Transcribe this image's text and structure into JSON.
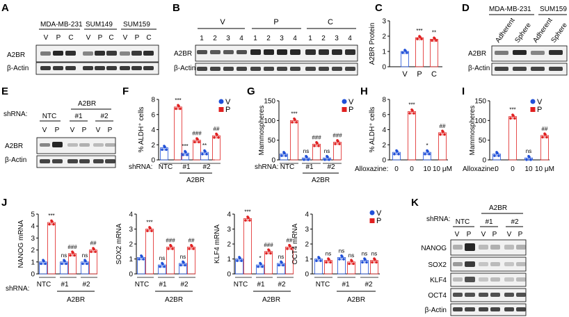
{
  "panel_letters": [
    "A",
    "B",
    "C",
    "D",
    "E",
    "F",
    "G",
    "H",
    "I",
    "J",
    "K"
  ],
  "colors": {
    "vehicle": "#1f4fd8",
    "treated": "#e02020",
    "axis": "#000000",
    "blot_bg": "#3b3b3b"
  },
  "blot_band_labels": {
    "a2br": "A2BR",
    "actin": "β-Actin",
    "nanog": "NANOG",
    "sox2": "SOX2",
    "klf4": "KLF4",
    "oct4": "OCT4"
  },
  "panel_a": {
    "groups": [
      "MDA-MB-231",
      "SUM149",
      "SUM159"
    ],
    "lanes": [
      "V",
      "P",
      "C",
      "V",
      "P",
      "C",
      "V",
      "P",
      "C"
    ]
  },
  "panel_b": {
    "groups": [
      "V",
      "P",
      "C"
    ],
    "lanes": [
      "1",
      "2",
      "3",
      "4",
      "1",
      "2",
      "3",
      "4",
      "1",
      "2",
      "3",
      "4"
    ]
  },
  "panel_d": {
    "header_left": "MDA-MB-231",
    "header_right": "SUM159",
    "lanes": [
      "Adherent",
      "Sphere",
      "Adherent",
      "Sphere"
    ]
  },
  "panel_e": {
    "row_label": "shRNA:",
    "header": "A2BR",
    "groups": [
      "NTC",
      "#1",
      "#2"
    ],
    "lanes": [
      "V",
      "P",
      "V",
      "P",
      "V",
      "P"
    ]
  },
  "panel_k": {
    "row_label": "shRNA:",
    "header": "A2BR",
    "groups": [
      "NTC",
      "#1",
      "#2"
    ],
    "lanes": [
      "V",
      "P",
      "V",
      "P",
      "V",
      "P"
    ]
  },
  "legend": {
    "v": "V",
    "p": "P"
  },
  "shrna_row": {
    "label": "shRNA:",
    "groups": [
      "NTC",
      "#1",
      "#2"
    ],
    "target": "A2BR"
  },
  "alloxazine_row": {
    "label": "Alloxazine:",
    "doses": [
      "0",
      "0",
      "10",
      "10 μM"
    ]
  },
  "chart_data": [
    {
      "id": "C",
      "type": "bar",
      "ylabel": "A2BR Protein",
      "categories": [
        "V",
        "P",
        "C"
      ],
      "values": [
        1.0,
        1.9,
        1.8
      ],
      "ylim": [
        0,
        3
      ],
      "yticks": [
        "0",
        "1",
        "2",
        "3"
      ],
      "annotations": [
        "",
        "***",
        "**"
      ]
    },
    {
      "id": "F",
      "type": "bar",
      "ylabel": "% ALDH⁺ cells",
      "categories": [
        "V",
        "P",
        "V",
        "P",
        "V",
        "P"
      ],
      "values": [
        1.6,
        7.0,
        0.9,
        2.6,
        1.0,
        3.2
      ],
      "ylim": [
        0,
        8
      ],
      "yticks": [
        "0",
        "2",
        "4",
        "6",
        "8"
      ],
      "annotations": [
        "",
        "***",
        "***",
        "###",
        "**",
        "##"
      ]
    },
    {
      "id": "G",
      "type": "bar",
      "ylabel": "Mammospheres",
      "categories": [
        "V",
        "P",
        "V",
        "P",
        "V",
        "P"
      ],
      "values": [
        15,
        100,
        5,
        40,
        5,
        45
      ],
      "ylim": [
        0,
        150
      ],
      "yticks": [
        "0",
        "50",
        "100",
        "150"
      ],
      "annotations": [
        "",
        "***",
        "ns",
        "###",
        "ns",
        "###"
      ]
    },
    {
      "id": "H",
      "type": "bar",
      "ylabel": "% ALDH⁺ cells",
      "categories": [
        "0",
        "0",
        "10",
        "10 μM"
      ],
      "values": [
        1.0,
        6.4,
        1.0,
        3.6
      ],
      "ylim": [
        0,
        8
      ],
      "yticks": [
        "0",
        "2",
        "4",
        "6",
        "8"
      ],
      "annotations": [
        "",
        "***",
        "*",
        "##"
      ]
    },
    {
      "id": "I",
      "type": "bar",
      "ylabel": "Mammospheres",
      "categories": [
        "0",
        "0",
        "10",
        "10 μM"
      ],
      "values": [
        15,
        110,
        5,
        62
      ],
      "ylim": [
        0,
        150
      ],
      "yticks": [
        "0",
        "50",
        "100",
        "150"
      ],
      "annotations": [
        "",
        "***",
        "ns",
        "##"
      ]
    },
    {
      "id": "J1",
      "type": "bar",
      "ylabel": "NANOG mRNA",
      "categories": [
        "V",
        "P",
        "V",
        "P",
        "V",
        "P"
      ],
      "values": [
        1.0,
        4.3,
        1.0,
        1.7,
        1.0,
        2.0
      ],
      "ylim": [
        0,
        5
      ],
      "yticks": [
        "0",
        "1",
        "2",
        "3",
        "4",
        "5"
      ],
      "annotations": [
        "",
        "***",
        "ns",
        "###",
        "ns",
        "##"
      ]
    },
    {
      "id": "J2",
      "type": "bar",
      "ylabel": "SOX2 mRNA",
      "categories": [
        "V",
        "P",
        "V",
        "P",
        "V",
        "P"
      ],
      "values": [
        1.1,
        3.0,
        0.6,
        1.8,
        0.7,
        1.8
      ],
      "ylim": [
        0,
        4
      ],
      "yticks": [
        "0",
        "1",
        "2",
        "3",
        "4"
      ],
      "annotations": [
        "",
        "***",
        "ns",
        "###",
        "ns",
        "##"
      ]
    },
    {
      "id": "J3",
      "type": "bar",
      "ylabel": "KLF4 mRNA",
      "categories": [
        "V",
        "P",
        "V",
        "P",
        "V",
        "P"
      ],
      "values": [
        1.0,
        3.7,
        0.6,
        1.5,
        0.7,
        1.8
      ],
      "ylim": [
        0,
        4
      ],
      "yticks": [
        "0",
        "1",
        "2",
        "3",
        "4"
      ],
      "annotations": [
        "",
        "***",
        "*",
        "###",
        "ns",
        "##"
      ]
    },
    {
      "id": "J4",
      "type": "bar",
      "ylabel": "OCT4 mRNA",
      "categories": [
        "V",
        "P",
        "V",
        "P",
        "V",
        "P"
      ],
      "values": [
        1.0,
        0.9,
        1.1,
        0.8,
        0.9,
        0.9
      ],
      "ylim": [
        0,
        4
      ],
      "yticks": [
        "0",
        "1",
        "2",
        "3",
        "4"
      ],
      "annotations": [
        "",
        "ns",
        "ns",
        "ns",
        "ns",
        "ns"
      ]
    }
  ]
}
